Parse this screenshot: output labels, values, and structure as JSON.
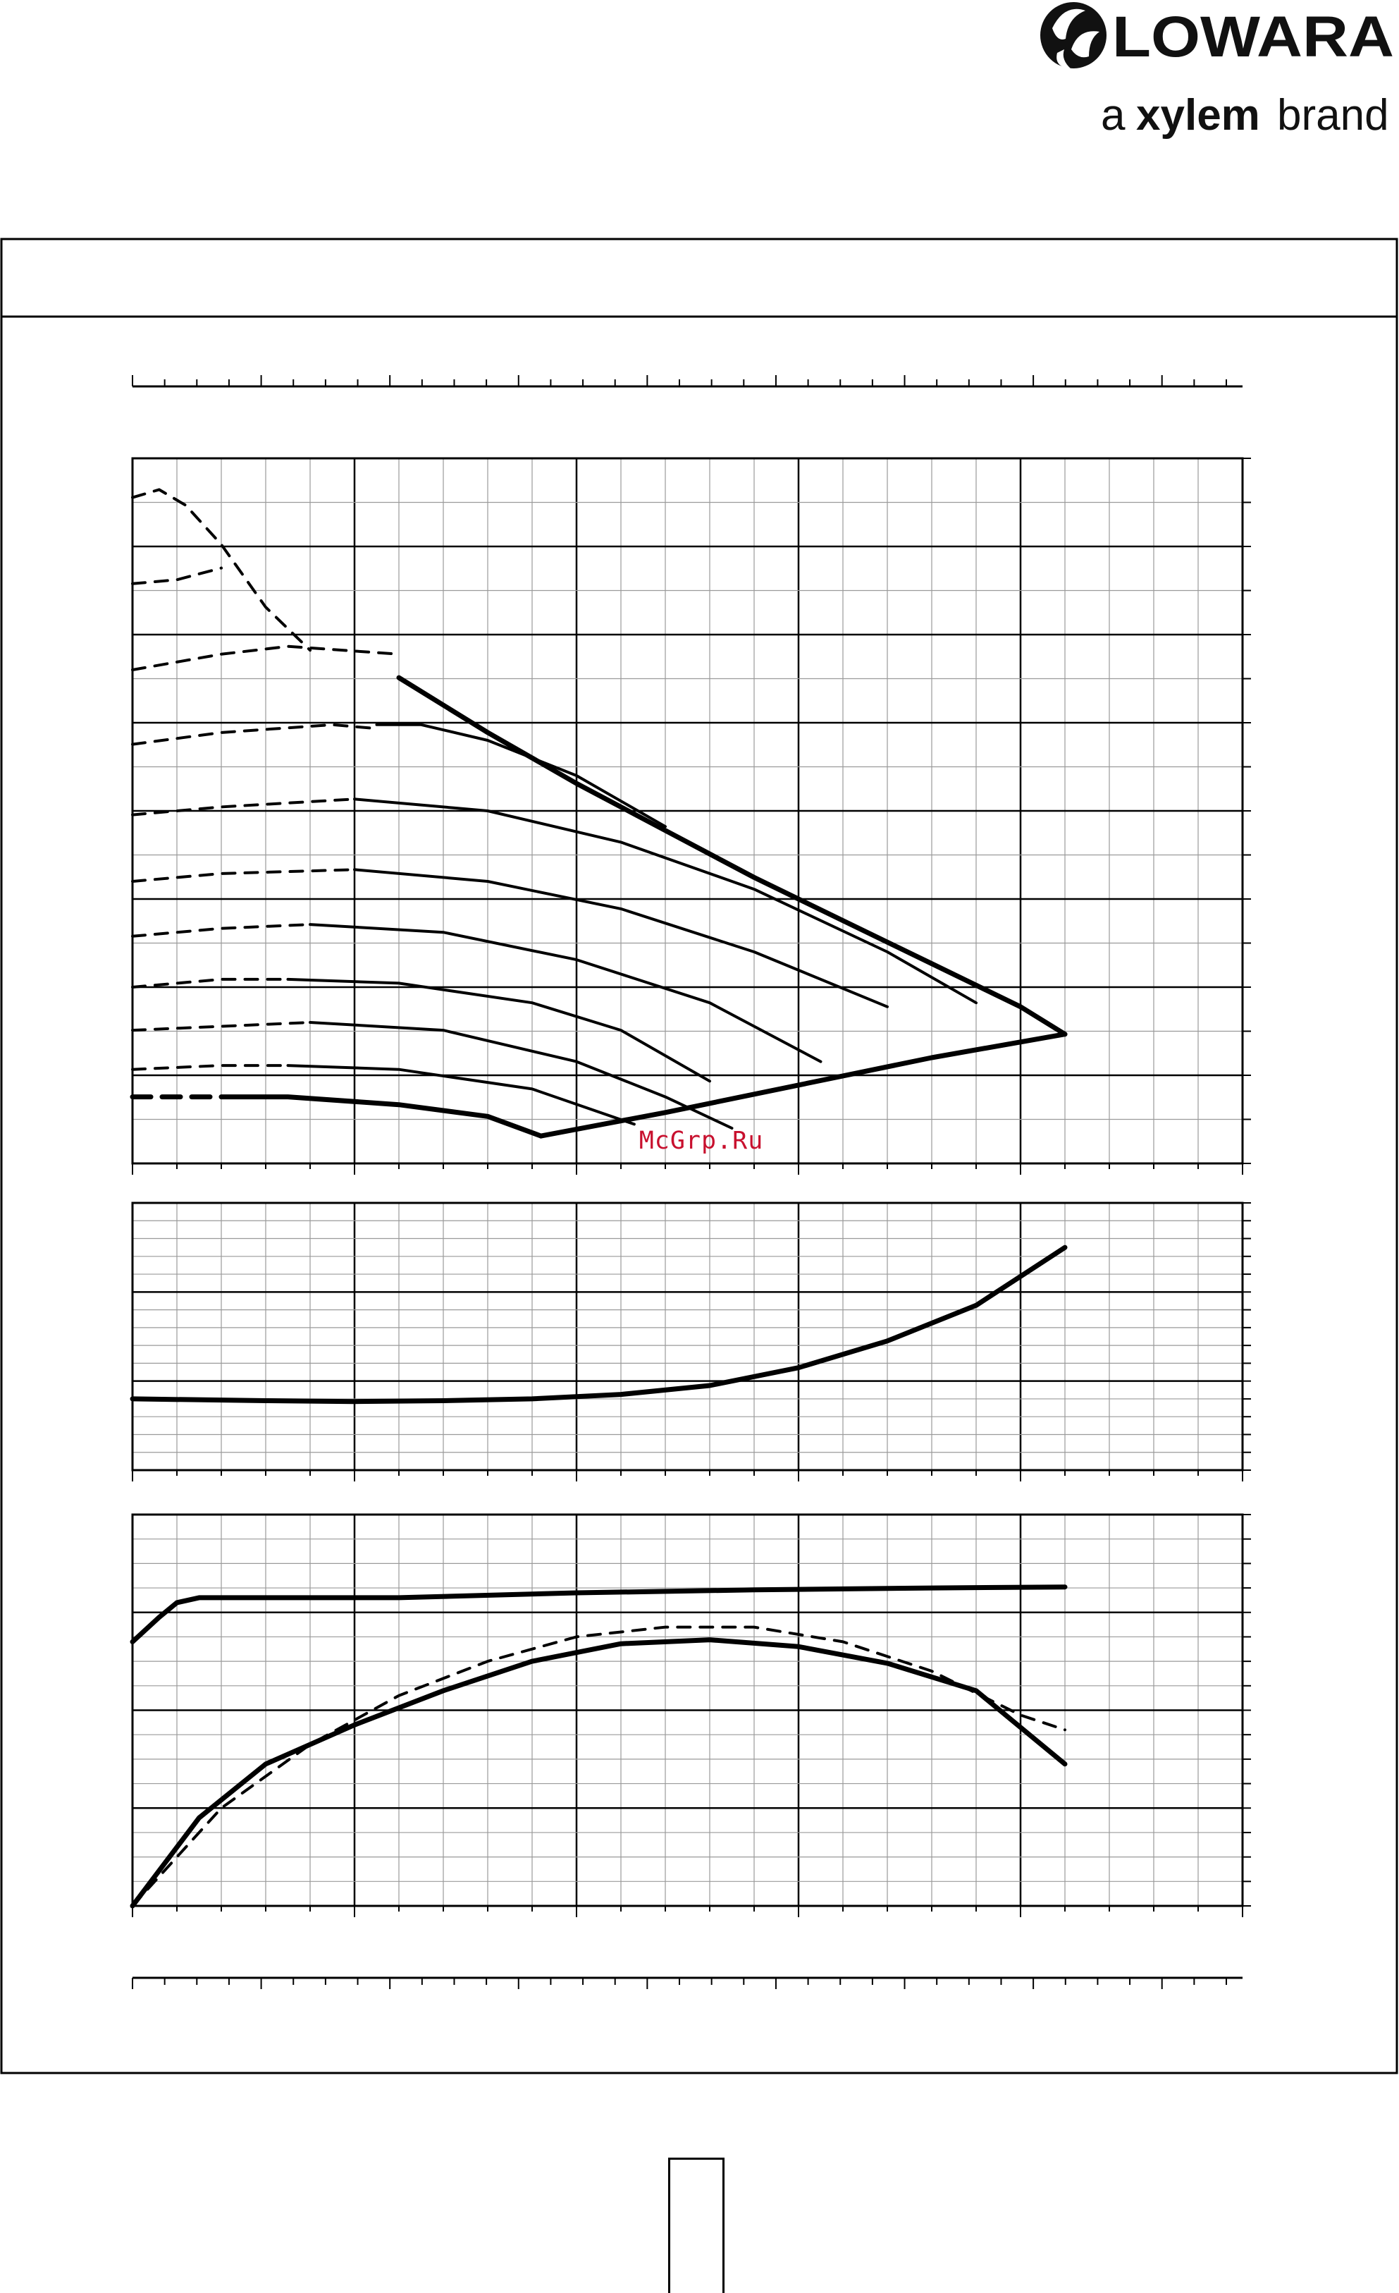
{
  "header": {
    "logo_text": "LOWARA",
    "tagline_prefix": "a",
    "tagline_brand": "xylem",
    "tagline_suffix": "brand",
    "logo_icon": "lowara-drop-swirl-icon"
  },
  "watermark": "McGrp.Ru",
  "chart_data": [
    {
      "type": "line",
      "name": "head-curves",
      "x": [
        0,
        5,
        10,
        15,
        20,
        25
      ],
      "ylim": [
        0,
        9
      ],
      "grid": true,
      "series": [
        {
          "style": "dashed",
          "points": [
            [
              0,
              8.5
            ],
            [
              0.6,
              8.6
            ],
            [
              1.2,
              8.4
            ],
            [
              2,
              7.9
            ],
            [
              3,
              7.1
            ],
            [
              4,
              6.55
            ]
          ]
        },
        {
          "style": "dashed",
          "points": [
            [
              0,
              7.4
            ],
            [
              1,
              7.45
            ],
            [
              2,
              7.6
            ]
          ]
        },
        {
          "style": "dashed",
          "points": [
            [
              0,
              6.3
            ],
            [
              2,
              6.5
            ],
            [
              3.5,
              6.6
            ],
            [
              6,
              6.5
            ]
          ]
        },
        {
          "style": "dashed",
          "points": [
            [
              0,
              5.35
            ],
            [
              2,
              5.5
            ],
            [
              4.5,
              5.6
            ],
            [
              5.5,
              5.55
            ]
          ]
        },
        {
          "style": "dashed",
          "points": [
            [
              0,
              4.45
            ],
            [
              2,
              4.55
            ],
            [
              5,
              4.65
            ]
          ]
        },
        {
          "style": "dashed",
          "points": [
            [
              0,
              3.6
            ],
            [
              2,
              3.7
            ],
            [
              5,
              3.75
            ]
          ]
        },
        {
          "style": "dashed",
          "points": [
            [
              0,
              2.9
            ],
            [
              2,
              3
            ],
            [
              4,
              3.05
            ]
          ]
        },
        {
          "style": "dashed",
          "points": [
            [
              0,
              2.25
            ],
            [
              2,
              2.35
            ],
            [
              3.5,
              2.35
            ]
          ]
        },
        {
          "style": "dashed",
          "points": [
            [
              0,
              1.7
            ],
            [
              2,
              1.75
            ],
            [
              4,
              1.8
            ]
          ]
        },
        {
          "style": "dashed",
          "points": [
            [
              0,
              1.2
            ],
            [
              2,
              1.25
            ],
            [
              3.5,
              1.25
            ]
          ]
        },
        {
          "style": "dashed-bold",
          "points": [
            [
              0,
              0.85
            ],
            [
              2,
              0.85
            ]
          ]
        },
        {
          "style": "solid-bold",
          "name": "max-envelope",
          "points": [
            [
              6,
              6.2
            ],
            [
              8,
              5.5
            ],
            [
              10,
              4.85
            ],
            [
              12,
              4.25
            ],
            [
              14,
              3.65
            ],
            [
              16,
              3.1
            ],
            [
              18,
              2.55
            ],
            [
              20,
              2
            ],
            [
              21,
              1.65
            ]
          ]
        },
        {
          "style": "solid",
          "points": [
            [
              5.5,
              5.6
            ],
            [
              6.5,
              5.6
            ],
            [
              8,
              5.4
            ],
            [
              10,
              4.95
            ],
            [
              12,
              4.3
            ]
          ]
        },
        {
          "style": "solid",
          "points": [
            [
              5,
              4.65
            ],
            [
              8,
              4.5
            ],
            [
              11,
              4.1
            ],
            [
              14,
              3.5
            ],
            [
              17,
              2.7
            ],
            [
              19,
              2.05
            ]
          ]
        },
        {
          "style": "solid",
          "points": [
            [
              5,
              3.75
            ],
            [
              8,
              3.6
            ],
            [
              11,
              3.25
            ],
            [
              14,
              2.7
            ],
            [
              17,
              2
            ]
          ]
        },
        {
          "style": "solid",
          "points": [
            [
              4,
              3.05
            ],
            [
              7,
              2.95
            ],
            [
              10,
              2.6
            ],
            [
              13,
              2.05
            ],
            [
              15.5,
              1.3
            ]
          ]
        },
        {
          "style": "solid",
          "points": [
            [
              3.5,
              2.35
            ],
            [
              6,
              2.3
            ],
            [
              9,
              2.05
            ],
            [
              11,
              1.7
            ],
            [
              13,
              1.05
            ]
          ]
        },
        {
          "style": "solid",
          "points": [
            [
              4,
              1.8
            ],
            [
              7,
              1.7
            ],
            [
              10,
              1.3
            ],
            [
              12,
              0.85
            ],
            [
              13.5,
              0.45
            ]
          ]
        },
        {
          "style": "solid",
          "points": [
            [
              3.5,
              1.25
            ],
            [
              6,
              1.2
            ],
            [
              9,
              0.95
            ],
            [
              11.3,
              0.5
            ]
          ]
        },
        {
          "style": "solid-bold",
          "points": [
            [
              2,
              0.85
            ],
            [
              3.5,
              0.85
            ],
            [
              6,
              0.75
            ],
            [
              8,
              0.6
            ],
            [
              9.2,
              0.35
            ]
          ]
        },
        {
          "style": "solid-bold",
          "name": "min-envelope",
          "points": [
            [
              9.2,
              0.35
            ],
            [
              12,
              0.65
            ],
            [
              15,
              1
            ],
            [
              18,
              1.35
            ],
            [
              21,
              1.65
            ]
          ]
        }
      ]
    },
    {
      "type": "line",
      "name": "power-curve",
      "x": [
        0,
        5,
        10,
        15,
        20,
        25
      ],
      "ylim": [
        0,
        3
      ],
      "grid": true,
      "series": [
        {
          "style": "solid-bold",
          "points": [
            [
              0,
              0.8
            ],
            [
              3,
              0.78
            ],
            [
              5,
              0.77
            ],
            [
              7,
              0.78
            ],
            [
              9,
              0.8
            ],
            [
              11,
              0.85
            ],
            [
              13,
              0.95
            ],
            [
              15,
              1.15
            ],
            [
              17,
              1.45
            ],
            [
              19,
              1.85
            ],
            [
              21,
              2.5
            ]
          ]
        }
      ]
    },
    {
      "type": "line",
      "name": "efficiency-curves",
      "x": [
        0,
        5,
        10,
        15,
        20,
        25
      ],
      "ylim": [
        0,
        4
      ],
      "grid": true,
      "series": [
        {
          "style": "solid-bold",
          "points": [
            [
              0,
              2.7
            ],
            [
              0.6,
              2.95
            ],
            [
              1,
              3.1
            ],
            [
              1.5,
              3.15
            ],
            [
              3,
              3.15
            ],
            [
              6,
              3.15
            ],
            [
              10,
              3.2
            ],
            [
              14,
              3.23
            ],
            [
              18,
              3.25
            ],
            [
              21,
              3.26
            ]
          ]
        },
        {
          "style": "dashed",
          "points": [
            [
              0,
              0
            ],
            [
              2,
              1
            ],
            [
              4,
              1.65
            ],
            [
              6,
              2.15
            ],
            [
              8,
              2.5
            ],
            [
              10,
              2.75
            ],
            [
              12,
              2.85
            ],
            [
              14,
              2.85
            ],
            [
              16,
              2.7
            ],
            [
              18,
              2.4
            ],
            [
              20,
              1.95
            ],
            [
              21,
              1.8
            ]
          ]
        },
        {
          "style": "solid-bold",
          "points": [
            [
              0,
              0
            ],
            [
              1.5,
              0.9
            ],
            [
              3,
              1.45
            ],
            [
              5,
              1.85
            ],
            [
              7,
              2.2
            ],
            [
              9,
              2.5
            ],
            [
              11,
              2.68
            ],
            [
              13,
              2.72
            ],
            [
              15,
              2.65
            ],
            [
              17,
              2.48
            ],
            [
              19,
              2.2
            ],
            [
              21,
              1.45
            ]
          ]
        }
      ]
    }
  ]
}
